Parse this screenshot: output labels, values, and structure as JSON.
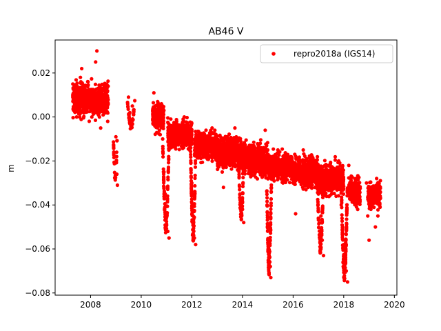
{
  "chart_data": {
    "type": "scatter",
    "title": "AB46 V",
    "xlabel": "",
    "ylabel": "m",
    "xlim": [
      2006.6,
      2020.1
    ],
    "ylim": [
      -0.081,
      0.035
    ],
    "xticks": [
      2008,
      2010,
      2012,
      2014,
      2016,
      2018,
      2020
    ],
    "yticks": [
      0.02,
      0.0,
      -0.02,
      -0.04,
      -0.06,
      -0.08
    ],
    "ytick_labels": [
      "0.02",
      "0.00",
      "−0.02",
      "−0.04",
      "−0.06",
      "−0.08"
    ],
    "grid": false,
    "legend_position": "top-right",
    "series": [
      {
        "name": "repro2018a (IGS14)",
        "color": "#ff0000",
        "points": [
          [
            2007.3,
            0.015
          ],
          [
            2007.35,
            0.01
          ],
          [
            2007.4,
            0.005
          ],
          [
            2007.45,
            0.0
          ],
          [
            2007.5,
            0.008
          ],
          [
            2007.55,
            0.012
          ],
          [
            2007.6,
            0.018
          ],
          [
            2007.65,
            0.022
          ],
          [
            2007.7,
            0.01
          ],
          [
            2007.75,
            0.005
          ],
          [
            2007.8,
            0.011
          ],
          [
            2007.85,
            0.014
          ],
          [
            2007.9,
            0.016
          ],
          [
            2007.95,
            0.008
          ],
          [
            2008.0,
            0.004
          ],
          [
            2008.05,
            0.0
          ],
          [
            2008.1,
            0.002
          ],
          [
            2008.15,
            0.012
          ],
          [
            2008.2,
            0.025
          ],
          [
            2008.25,
            0.03
          ],
          [
            2008.3,
            0.01
          ],
          [
            2008.35,
            0.0
          ],
          [
            2008.4,
            -0.005
          ],
          [
            2008.45,
            0.006
          ],
          [
            2008.5,
            0.012
          ],
          [
            2008.55,
            0.005
          ],
          [
            2008.6,
            0.002
          ],
          [
            2009.0,
            -0.009
          ],
          [
            2009.02,
            -0.02
          ],
          [
            2009.04,
            -0.026
          ],
          [
            2009.06,
            -0.031
          ],
          [
            2009.5,
            0.009
          ],
          [
            2009.55,
            0.002
          ],
          [
            2009.6,
            -0.005
          ],
          [
            2009.65,
            0.005
          ],
          [
            2009.7,
            0.003
          ],
          [
            2010.5,
            0.011
          ],
          [
            2010.55,
            0.005
          ],
          [
            2010.6,
            -0.002
          ],
          [
            2010.65,
            0.007
          ],
          [
            2010.7,
            0.0
          ],
          [
            2010.75,
            -0.008
          ],
          [
            2010.8,
            0.006
          ],
          [
            2010.85,
            -0.01
          ],
          [
            2010.9,
            -0.025
          ],
          [
            2010.95,
            -0.035
          ],
          [
            2011.0,
            -0.045
          ],
          [
            2011.05,
            -0.052
          ],
          [
            2011.1,
            -0.055
          ],
          [
            2011.2,
            -0.005
          ],
          [
            2011.3,
            -0.01
          ],
          [
            2011.4,
            -0.002
          ],
          [
            2011.5,
            -0.008
          ],
          [
            2011.6,
            -0.012
          ],
          [
            2011.7,
            0.0
          ],
          [
            2011.8,
            -0.006
          ],
          [
            2011.9,
            -0.014
          ],
          [
            2012.0,
            -0.03
          ],
          [
            2012.05,
            -0.045
          ],
          [
            2012.1,
            -0.055
          ],
          [
            2012.15,
            -0.058
          ],
          [
            2012.3,
            -0.01
          ],
          [
            2012.4,
            -0.014
          ],
          [
            2012.5,
            -0.008
          ],
          [
            2012.6,
            -0.018
          ],
          [
            2012.7,
            -0.012
          ],
          [
            2012.8,
            -0.005
          ],
          [
            2012.9,
            -0.016
          ],
          [
            2013.0,
            -0.02
          ],
          [
            2013.1,
            -0.012
          ],
          [
            2013.2,
            -0.025
          ],
          [
            2013.25,
            -0.032
          ],
          [
            2013.3,
            -0.018
          ],
          [
            2013.4,
            -0.01
          ],
          [
            2013.5,
            -0.022
          ],
          [
            2013.6,
            -0.015
          ],
          [
            2013.7,
            -0.005
          ],
          [
            2013.8,
            -0.018
          ],
          [
            2013.9,
            -0.035
          ],
          [
            2014.0,
            -0.042
          ],
          [
            2014.05,
            -0.048
          ],
          [
            2014.2,
            -0.014
          ],
          [
            2014.3,
            -0.02
          ],
          [
            2014.4,
            -0.025
          ],
          [
            2014.5,
            -0.016
          ],
          [
            2014.6,
            -0.022
          ],
          [
            2014.7,
            -0.012
          ],
          [
            2014.8,
            -0.018
          ],
          [
            2014.9,
            -0.006
          ],
          [
            2015.0,
            -0.015
          ],
          [
            2015.0,
            -0.05
          ],
          [
            2015.05,
            -0.062
          ],
          [
            2015.1,
            -0.068
          ],
          [
            2015.12,
            -0.073
          ],
          [
            2015.2,
            -0.02
          ],
          [
            2015.3,
            -0.025
          ],
          [
            2015.4,
            -0.015
          ],
          [
            2015.5,
            -0.022
          ],
          [
            2015.6,
            -0.03
          ],
          [
            2015.7,
            -0.02
          ],
          [
            2015.8,
            -0.018
          ],
          [
            2015.9,
            -0.026
          ],
          [
            2016.0,
            -0.03
          ],
          [
            2016.1,
            -0.044
          ],
          [
            2016.2,
            -0.022
          ],
          [
            2016.3,
            -0.028
          ],
          [
            2016.4,
            -0.015
          ],
          [
            2016.5,
            -0.025
          ],
          [
            2016.6,
            -0.032
          ],
          [
            2016.7,
            -0.024
          ],
          [
            2016.8,
            -0.02
          ],
          [
            2016.9,
            -0.03
          ],
          [
            2017.0,
            -0.035
          ],
          [
            2017.1,
            -0.045
          ],
          [
            2017.15,
            -0.056
          ],
          [
            2017.2,
            -0.063
          ],
          [
            2017.3,
            -0.028
          ],
          [
            2017.4,
            -0.022
          ],
          [
            2017.5,
            -0.032
          ],
          [
            2017.6,
            -0.026
          ],
          [
            2017.7,
            -0.036
          ],
          [
            2017.8,
            -0.02
          ],
          [
            2017.9,
            -0.04
          ],
          [
            2017.95,
            -0.05
          ],
          [
            2018.0,
            -0.058
          ],
          [
            2018.05,
            -0.064
          ],
          [
            2018.1,
            -0.07
          ],
          [
            2018.15,
            -0.075
          ],
          [
            2018.2,
            -0.022
          ],
          [
            2018.3,
            -0.03
          ],
          [
            2018.4,
            -0.038
          ],
          [
            2018.5,
            -0.032
          ],
          [
            2018.55,
            -0.042
          ],
          [
            2018.9,
            -0.03
          ],
          [
            2018.95,
            -0.045
          ],
          [
            2019.0,
            -0.056
          ],
          [
            2019.1,
            -0.04
          ],
          [
            2019.15,
            -0.032
          ],
          [
            2019.2,
            -0.038
          ],
          [
            2019.25,
            -0.05
          ],
          [
            2019.3,
            -0.028
          ],
          [
            2019.35,
            -0.045
          ],
          [
            2019.4,
            -0.035
          ]
        ],
        "segments": [
          {
            "x": [
              2007.3,
              2008.7
            ],
            "center": 0.008,
            "spread": 0.007,
            "n": 700
          },
          {
            "x": [
              2010.45,
              2010.9
            ],
            "center": 0.0,
            "spread": 0.006,
            "n": 220
          },
          {
            "x": [
              2011.05,
              2012.0
            ],
            "center": -0.008,
            "spread": 0.006,
            "n": 520
          },
          {
            "x": [
              2012.1,
              2013.0
            ],
            "center": -0.013,
            "spread": 0.006,
            "n": 520
          },
          {
            "x": [
              2013.0,
              2014.0
            ],
            "center": -0.016,
            "spread": 0.007,
            "n": 520
          },
          {
            "x": [
              2014.0,
              2015.0
            ],
            "center": -0.019,
            "spread": 0.007,
            "n": 560
          },
          {
            "x": [
              2015.0,
              2016.0
            ],
            "center": -0.023,
            "spread": 0.006,
            "n": 520
          },
          {
            "x": [
              2016.0,
              2017.0
            ],
            "center": -0.025,
            "spread": 0.007,
            "n": 520
          },
          {
            "x": [
              2017.0,
              2018.0
            ],
            "center": -0.028,
            "spread": 0.007,
            "n": 520
          },
          {
            "x": [
              2018.2,
              2018.65
            ],
            "center": -0.034,
            "spread": 0.006,
            "n": 220
          },
          {
            "x": [
              2018.95,
              2019.45
            ],
            "center": -0.036,
            "spread": 0.006,
            "n": 240
          }
        ],
        "dips": [
          {
            "x": [
              2010.85,
              2011.1
            ],
            "from": -0.012,
            "to": -0.053,
            "n": 90
          },
          {
            "x": [
              2011.95,
              2012.15
            ],
            "from": -0.015,
            "to": -0.057,
            "n": 90
          },
          {
            "x": [
              2013.85,
              2014.05
            ],
            "from": -0.02,
            "to": -0.047,
            "n": 70
          },
          {
            "x": [
              2014.95,
              2015.15
            ],
            "from": -0.025,
            "to": -0.072,
            "n": 110
          },
          {
            "x": [
              2016.95,
              2017.2
            ],
            "from": -0.028,
            "to": -0.062,
            "n": 90
          },
          {
            "x": [
              2017.9,
              2018.15
            ],
            "from": -0.03,
            "to": -0.075,
            "n": 130
          },
          {
            "x": [
              2008.9,
              2009.05
            ],
            "from": -0.009,
            "to": -0.031,
            "n": 25
          },
          {
            "x": [
              2009.45,
              2009.75
            ],
            "from": 0.008,
            "to": -0.006,
            "n": 40
          }
        ]
      }
    ]
  }
}
